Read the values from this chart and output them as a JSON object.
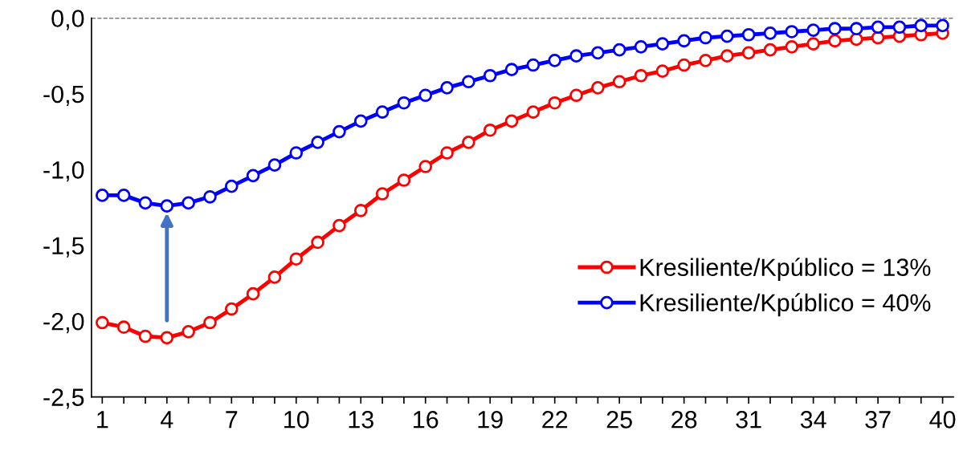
{
  "chart_data": {
    "type": "line",
    "x": [
      1,
      2,
      3,
      4,
      5,
      6,
      7,
      8,
      9,
      10,
      11,
      12,
      13,
      14,
      15,
      16,
      17,
      18,
      19,
      20,
      21,
      22,
      23,
      24,
      25,
      26,
      27,
      28,
      29,
      30,
      31,
      32,
      33,
      34,
      35,
      36,
      37,
      38,
      39,
      40
    ],
    "series": [
      {
        "name": "Kresiliente/Kpúblico = 13%",
        "color": "#ff0000",
        "values": [
          -2.01,
          -2.04,
          -2.1,
          -2.11,
          -2.07,
          -2.01,
          -1.92,
          -1.82,
          -1.71,
          -1.59,
          -1.48,
          -1.37,
          -1.27,
          -1.16,
          -1.07,
          -0.98,
          -0.89,
          -0.82,
          -0.74,
          -0.68,
          -0.62,
          -0.56,
          -0.51,
          -0.46,
          -0.42,
          -0.38,
          -0.35,
          -0.31,
          -0.28,
          -0.25,
          -0.23,
          -0.21,
          -0.19,
          -0.17,
          -0.15,
          -0.14,
          -0.13,
          -0.12,
          -0.11,
          -0.1
        ]
      },
      {
        "name": "Kresiliente/Kpúblico = 40%",
        "color": "#0000ff",
        "values": [
          -1.17,
          -1.17,
          -1.22,
          -1.24,
          -1.22,
          -1.18,
          -1.11,
          -1.04,
          -0.97,
          -0.89,
          -0.82,
          -0.75,
          -0.68,
          -0.62,
          -0.56,
          -0.51,
          -0.46,
          -0.42,
          -0.38,
          -0.34,
          -0.31,
          -0.28,
          -0.25,
          -0.23,
          -0.21,
          -0.19,
          -0.17,
          -0.15,
          -0.13,
          -0.12,
          -0.11,
          -0.1,
          -0.09,
          -0.08,
          -0.07,
          -0.07,
          -0.06,
          -0.06,
          -0.05,
          -0.05
        ]
      }
    ],
    "xlim": [
      0.5,
      40.5
    ],
    "xticks": [
      1,
      {
        "value": 2,
        "label": null
      },
      {
        "value": 3,
        "label": null
      },
      4,
      {
        "value": 5,
        "label": null
      },
      {
        "value": 6,
        "label": null
      },
      7,
      {
        "value": 8,
        "label": null
      },
      {
        "value": 9,
        "label": null
      },
      10,
      {
        "value": 11,
        "label": null
      },
      {
        "value": 12,
        "label": null
      },
      13,
      {
        "value": 14,
        "label": null
      },
      {
        "value": 15,
        "label": null
      },
      16,
      {
        "value": 17,
        "label": null
      },
      {
        "value": 18,
        "label": null
      },
      19,
      {
        "value": 20,
        "label": null
      },
      {
        "value": 21,
        "label": null
      },
      22,
      {
        "value": 23,
        "label": null
      },
      {
        "value": 24,
        "label": null
      },
      25,
      {
        "value": 26,
        "label": null
      },
      {
        "value": 27,
        "label": null
      },
      28,
      {
        "value": 29,
        "label": null
      },
      {
        "value": 30,
        "label": null
      },
      31,
      {
        "value": 32,
        "label": null
      },
      {
        "value": 33,
        "label": null
      },
      34,
      {
        "value": 35,
        "label": null
      },
      {
        "value": 36,
        "label": null
      },
      37,
      {
        "value": 38,
        "label": null
      },
      {
        "value": 39,
        "label": null
      },
      40
    ],
    "ylim": [
      -2.5,
      0.0
    ],
    "yticks": [
      {
        "value": 0,
        "label": "0,0"
      },
      {
        "value": -0.5,
        "label": "-0,5"
      },
      {
        "value": -1,
        "label": "-1,0"
      },
      {
        "value": -1.5,
        "label": "-1,5"
      },
      {
        "value": -2,
        "label": "-2,0"
      },
      {
        "value": -2.5,
        "label": "-2,5"
      }
    ],
    "ref_lines": [
      {
        "axis": "y",
        "value": 0,
        "color": "#000000",
        "line_style": "dashed"
      }
    ],
    "grid": false,
    "legend": "right",
    "marker": "circle",
    "line_style": "solid"
  }
}
